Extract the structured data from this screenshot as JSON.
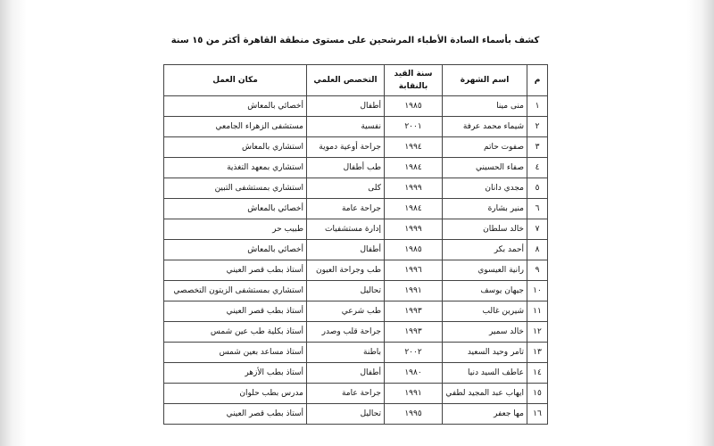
{
  "header": {
    "title": "كشف بأسماء السادة الأطباء المرشحين على مستوى منطقة القاهرة أكثر من ١٥ سنة"
  },
  "table": {
    "columns": [
      "م",
      "اسم الشهرة",
      "سنة القيد بالنقابة",
      "التخصص العلمي",
      "مكان العمل"
    ],
    "rows": [
      [
        "١",
        "منى مينا",
        "١٩٨٥",
        "أطفال",
        "أخصائي بالمعاش"
      ],
      [
        "٢",
        "شيماء محمد عرفة",
        "٢٠٠١",
        "نفسية",
        "مستشفى الزهراء الجامعي"
      ],
      [
        "٣",
        "صفوت حاتم",
        "١٩٩٤",
        "جراحة أوعية دموية",
        "استشاري بالمعاش"
      ],
      [
        "٤",
        "صفاء الحسيني",
        "١٩٨٤",
        "طب أطفال",
        "استشاري بمعهد التغذية"
      ],
      [
        "٥",
        "مجدي دانان",
        "١٩٩٩",
        "كلى",
        "استشاري بمستشفى التبين"
      ],
      [
        "٦",
        "منير بشارة",
        "١٩٨٤",
        "جراحة عامة",
        "أخصائي بالمعاش"
      ],
      [
        "٧",
        "خالد سلطان",
        "١٩٩٩",
        "إدارة مستشفيات",
        "طبيب حر"
      ],
      [
        "٨",
        "أحمد بكر",
        "١٩٨٥",
        "أطفال",
        "أخصائي بالمعاش"
      ],
      [
        "٩",
        "رانية العيسوي",
        "١٩٩٦",
        "طب وجراحة العيون",
        "أستاذ بطب قصر العيني"
      ],
      [
        "١٠",
        "جيهان يوسف",
        "١٩٩١",
        "تحاليل",
        "استشاري بمستشفى الزيتون التخصصي"
      ],
      [
        "١١",
        "شيرين غالب",
        "١٩٩٣",
        "طب شرعي",
        "أستاذ بطب قصر العيني"
      ],
      [
        "١٢",
        "خالد سمير",
        "١٩٩٣",
        "جراحة قلب وصدر",
        "أستاذ بكلية طب عين شمس"
      ],
      [
        "١٣",
        "تامر وحيد السعيد",
        "٢٠٠٢",
        "باطنة",
        "أستاذ مساعد بعين شمس"
      ],
      [
        "١٤",
        "عاطف السيد دنيا",
        "١٩٨٠",
        "أطفال",
        "أستاذ بطب الأزهر"
      ],
      [
        "١٥",
        "ايهاب عبد المجيد لطفي",
        "١٩٩١",
        "جراحة عامة",
        "مدرس بطب حلوان"
      ],
      [
        "١٦",
        "مها جعفر",
        "١٩٩٥",
        "تحاليل",
        "أستاذ بطب قصر العيني"
      ]
    ]
  }
}
